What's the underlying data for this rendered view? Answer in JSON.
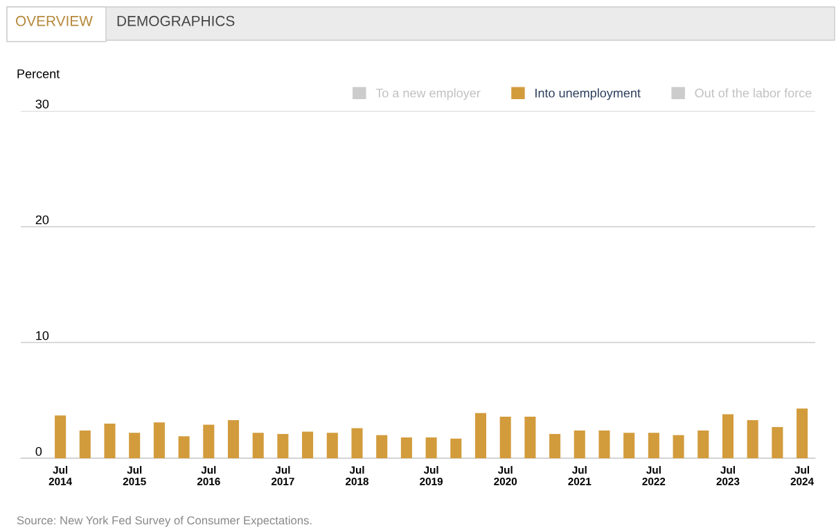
{
  "chart_data": {
    "type": "bar",
    "annotations": [
      "OVERVIEW",
      "DEMOGRAPHICS",
      "Source: New York Fed Survey of Consumer Expectations."
    ],
    "ylabel": "Percent",
    "categories": [
      "Jul\n2014",
      null,
      null,
      "Jul\n2015",
      null,
      null,
      "Jul\n2016",
      null,
      null,
      "Jul\n2017",
      null,
      null,
      "Jul\n2018",
      null,
      null,
      "Jul\n2019",
      null,
      null,
      "Jul\n2020",
      null,
      null,
      "Jul\n2021",
      null,
      null,
      "Jul\n2022",
      null,
      null,
      "Jul\n2023",
      null,
      null,
      "Jul\n2024"
    ],
    "series": [
      {
        "name": "To a new employer",
        "color": "#cccccc",
        "values": [
          null,
          null,
          null,
          null,
          null,
          null,
          null,
          null,
          null,
          null,
          null,
          null,
          null,
          null,
          null,
          null,
          null,
          null,
          null,
          null,
          null,
          null,
          null,
          null,
          null,
          null,
          null,
          null,
          null,
          null,
          null
        ]
      },
      {
        "name": "Into unemployment",
        "color": "#d29b3c",
        "values": [
          3.7,
          2.4,
          3.0,
          2.2,
          3.1,
          1.9,
          2.9,
          3.3,
          2.2,
          2.1,
          2.3,
          2.2,
          2.6,
          2.0,
          1.8,
          1.8,
          1.7,
          3.9,
          3.6,
          3.6,
          2.1,
          2.4,
          2.4,
          2.2,
          2.2,
          2.0,
          2.4,
          3.8,
          3.3,
          2.7,
          4.3
        ]
      },
      {
        "name": "Out of the labor force",
        "color": "#cccccc",
        "values": [
          null,
          null,
          null,
          null,
          null,
          null,
          null,
          null,
          null,
          null,
          null,
          null,
          null,
          null,
          null,
          null,
          null,
          null,
          null,
          null,
          null,
          null,
          null,
          null,
          null,
          null,
          null,
          null,
          null,
          null,
          null
        ]
      }
    ],
    "ylim": [
      0,
      30
    ],
    "yticks": [
      0,
      10,
      20,
      30
    ],
    "grid": "y",
    "legend": "top right"
  }
}
